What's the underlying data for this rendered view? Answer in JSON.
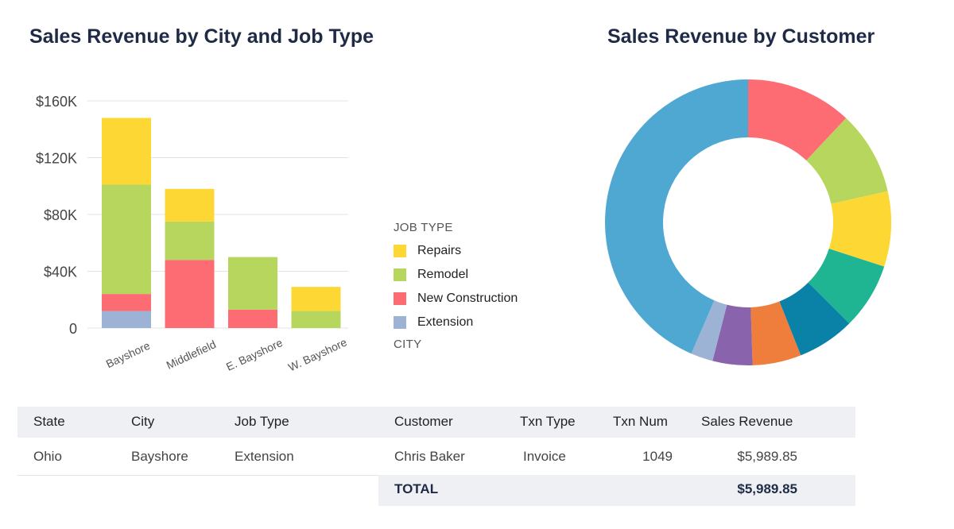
{
  "titles": {
    "bar": "Sales Revenue by City and Job Type",
    "pie": "Sales Revenue by Customer"
  },
  "legend": {
    "title": "JOB TYPE",
    "subtitle": "CITY",
    "items": [
      {
        "label": "Repairs",
        "color": "#fdd835"
      },
      {
        "label": "Remodel",
        "color": "#b7d65d"
      },
      {
        "label": "New Construction",
        "color": "#fd6c73"
      },
      {
        "label": "Extension",
        "color": "#9db3d6"
      }
    ]
  },
  "chart_data": [
    {
      "type": "bar",
      "stacked": true,
      "categories": [
        "Bayshore",
        "Middlefield",
        "E. Bayshore",
        "W. Bayshore"
      ],
      "series": [
        {
          "name": "Extension",
          "color": "#9db3d6",
          "values": [
            12000,
            0,
            0,
            0
          ]
        },
        {
          "name": "New Construction",
          "color": "#fd6c73",
          "values": [
            12000,
            48000,
            13000,
            0
          ]
        },
        {
          "name": "Remodel",
          "color": "#b7d65d",
          "values": [
            77000,
            27000,
            37000,
            12000
          ]
        },
        {
          "name": "Repairs",
          "color": "#fdd835",
          "values": [
            47000,
            23000,
            0,
            17000
          ]
        }
      ],
      "ylim": [
        0,
        160000
      ],
      "yticks": [
        {
          "value": 0,
          "label": "0"
        },
        {
          "value": 40000,
          "label": "$40K"
        },
        {
          "value": 80000,
          "label": "$80K"
        },
        {
          "value": 120000,
          "label": "$120K"
        },
        {
          "value": 160000,
          "label": "$160K"
        }
      ],
      "grid": true
    },
    {
      "type": "pie",
      "donut": true,
      "slices": [
        {
          "value": 12,
          "color": "#fd6c73"
        },
        {
          "value": 9.5,
          "color": "#b7d65d"
        },
        {
          "value": 8.5,
          "color": "#fdd835"
        },
        {
          "value": 7.5,
          "color": "#1fb592"
        },
        {
          "value": 6.5,
          "color": "#0a81a6"
        },
        {
          "value": 5.5,
          "color": "#ef7d3b"
        },
        {
          "value": 4.5,
          "color": "#8a63ad"
        },
        {
          "value": 2.5,
          "color": "#9db3d6"
        },
        {
          "value": 43.5,
          "color": "#4fa8d1"
        }
      ]
    }
  ],
  "table": {
    "headers": [
      "State",
      "City",
      "Job Type",
      "Customer",
      "Txn Type",
      "Txn Num",
      "Sales Revenue"
    ],
    "rows": [
      [
        "Ohio",
        "Bayshore",
        "Extension",
        "Chris Baker",
        "Invoice",
        "1049",
        "$5,989.85"
      ]
    ],
    "total_label": "TOTAL",
    "total_value": "$5,989.85"
  }
}
